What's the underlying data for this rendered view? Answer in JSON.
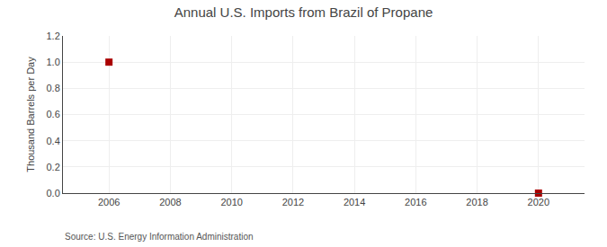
{
  "chart_data": {
    "type": "scatter",
    "title": "Annual U.S. Imports from Brazil of Propane",
    "y_label": "Thousand Barrels per Day",
    "annotations": [
      "Source: U.S. Energy Information Administration"
    ],
    "x": [
      2006,
      2020
    ],
    "values": [
      1.0,
      0.0
    ],
    "color": "#AA0000",
    "marker": "square",
    "xlim": [
      2004.5,
      2021.5
    ],
    "ylim": [
      0.0,
      1.2
    ],
    "xticks": [
      2006,
      2008,
      2010,
      2012,
      2014,
      2016,
      2018,
      2020
    ],
    "yticks": [
      {
        "value": 0.0,
        "label": "0.0"
      },
      0.2,
      0.4,
      0.6,
      0.8,
      {
        "value": 1.0,
        "label": "1.0"
      },
      1.2
    ],
    "grid": true
  }
}
